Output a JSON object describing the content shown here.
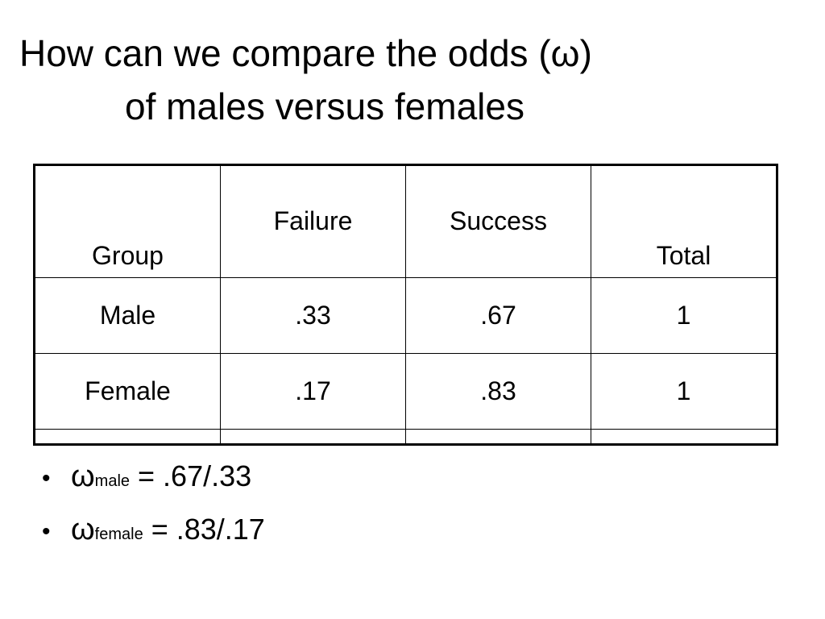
{
  "title": {
    "line1": "How can we compare the odds (ω)",
    "line2": "of males versus females"
  },
  "table": {
    "headers": [
      "Group",
      "Failure",
      "Success",
      "Total"
    ],
    "rows": [
      [
        "Male",
        ".33",
        ".67",
        "1"
      ],
      [
        "Female",
        ".17",
        ".83",
        "1"
      ]
    ]
  },
  "bullets": [
    {
      "dot": "•",
      "symbol": "ω",
      "subscript": "male",
      "expression": " = .67/.33"
    },
    {
      "dot": "•",
      "symbol": "ω",
      "subscript": "female",
      "expression": " = .83/.17"
    }
  ]
}
